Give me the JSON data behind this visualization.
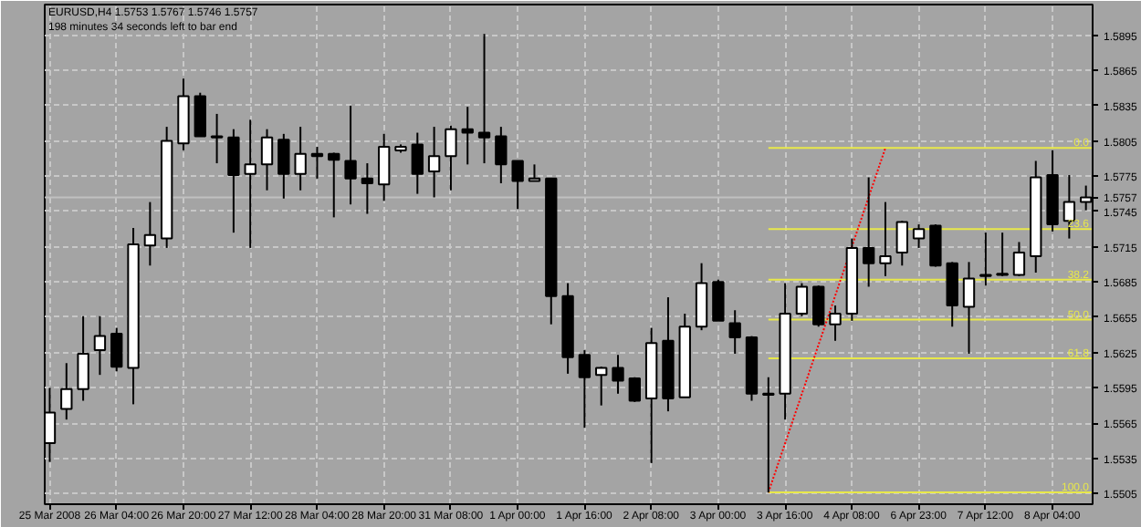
{
  "chart_data": {
    "type": "candlestick",
    "title": "EURUSD,H4  1.5753  1.5767  1.5746  1.5757",
    "subtitle": "198 minutes 34 seconds left to bar end",
    "categories": [
      "25 Mar 2008",
      null,
      null,
      null,
      "26 Mar 04:00",
      null,
      null,
      null,
      "26 Mar 20:00",
      null,
      null,
      null,
      "27 Mar 12:00",
      null,
      null,
      null,
      "28 Mar 04:00",
      null,
      null,
      null,
      "28 Mar 20:00",
      null,
      null,
      null,
      "31 Mar 08:00",
      null,
      null,
      null,
      "1 Apr 00:00",
      null,
      null,
      null,
      "1 Apr 16:00",
      null,
      null,
      null,
      "2 Apr 08:00",
      null,
      null,
      null,
      "3 Apr 00:00",
      null,
      null,
      null,
      "3 Apr 16:00",
      null,
      null,
      null,
      "4 Apr 08:00",
      null,
      null,
      null,
      "6 Apr 23:00",
      null,
      null,
      null,
      "7 Apr 12:00",
      null,
      null,
      null,
      "8 Apr 04:00",
      null,
      null
    ],
    "ohlc": [
      [
        1.5548,
        1.5595,
        1.5532,
        1.5574
      ],
      [
        1.5577,
        1.5616,
        1.5568,
        1.5594
      ],
      [
        1.5594,
        1.5656,
        1.5584,
        1.5624
      ],
      [
        1.5627,
        1.5656,
        1.5606,
        1.5639
      ],
      [
        1.5641,
        1.5646,
        1.5609,
        1.5613
      ],
      [
        1.5612,
        1.5731,
        1.5581,
        1.5717
      ],
      [
        1.5716,
        1.5753,
        1.5699,
        1.5725
      ],
      [
        1.5722,
        1.5817,
        1.5714,
        1.5805
      ],
      [
        1.5803,
        1.5858,
        1.5797,
        1.5843
      ],
      [
        1.5843,
        1.5846,
        1.5809,
        1.5809
      ],
      [
        1.5809,
        1.5828,
        1.5786,
        1.5808
      ],
      [
        1.5808,
        1.5815,
        1.5727,
        1.5776
      ],
      [
        1.5777,
        1.5823,
        1.5714,
        1.5785
      ],
      [
        1.5785,
        1.5815,
        1.5763,
        1.5808
      ],
      [
        1.5806,
        1.5811,
        1.5756,
        1.5777
      ],
      [
        1.5777,
        1.5817,
        1.5763,
        1.5794
      ],
      [
        1.5794,
        1.58,
        1.5773,
        1.5792
      ],
      [
        1.5794,
        1.5795,
        1.574,
        1.5789
      ],
      [
        1.5788,
        1.5835,
        1.5751,
        1.5773
      ],
      [
        1.5773,
        1.5786,
        1.5743,
        1.5769
      ],
      [
        1.5768,
        1.5811,
        1.5754,
        1.58
      ],
      [
        1.5797,
        1.5802,
        1.5795,
        1.58
      ],
      [
        1.5802,
        1.5812,
        1.576,
        1.5777
      ],
      [
        1.5779,
        1.5817,
        1.5757,
        1.5792
      ],
      [
        1.5792,
        1.5818,
        1.5763,
        1.5815
      ],
      [
        1.5815,
        1.5834,
        1.5785,
        1.5812
      ],
      [
        1.5812,
        1.5896,
        1.5786,
        1.5808
      ],
      [
        1.5809,
        1.5817,
        1.5769,
        1.5785
      ],
      [
        1.5788,
        1.5788,
        1.5747,
        1.5771
      ],
      [
        1.5771,
        1.5785,
        1.5771,
        1.5773
      ],
      [
        1.5773,
        1.5773,
        1.5649,
        1.5673
      ],
      [
        1.5673,
        1.5684,
        1.5607,
        1.5621
      ],
      [
        1.5623,
        1.5627,
        1.5561,
        1.5604
      ],
      [
        1.5606,
        1.5613,
        1.558,
        1.5612
      ],
      [
        1.5612,
        1.5623,
        1.559,
        1.5601
      ],
      [
        1.5603,
        1.5604,
        1.5583,
        1.5584
      ],
      [
        1.5586,
        1.5646,
        1.5531,
        1.5633
      ],
      [
        1.5635,
        1.5672,
        1.5575,
        1.5586
      ],
      [
        1.5587,
        1.5658,
        1.5587,
        1.5647
      ],
      [
        1.5647,
        1.5701,
        1.5644,
        1.5684
      ],
      [
        1.5685,
        1.5687,
        1.5652,
        1.5652
      ],
      [
        1.565,
        1.5661,
        1.5624,
        1.5638
      ],
      [
        1.5638,
        1.5639,
        1.5584,
        1.559
      ],
      [
        1.559,
        1.5604,
        1.5506,
        1.5589
      ],
      [
        1.559,
        1.5684,
        1.5568,
        1.5658
      ],
      [
        1.5658,
        1.5684,
        1.5656,
        1.5681
      ],
      [
        1.5681,
        1.5682,
        1.5647,
        1.5649
      ],
      [
        1.5649,
        1.5665,
        1.5635,
        1.5658
      ],
      [
        1.5658,
        1.5722,
        1.5652,
        1.5714
      ],
      [
        1.5714,
        1.5774,
        1.5681,
        1.5701
      ],
      [
        1.5701,
        1.5753,
        1.569,
        1.5707
      ],
      [
        1.571,
        1.5737,
        1.5699,
        1.5736
      ],
      [
        1.5722,
        1.5734,
        1.5714,
        1.573
      ],
      [
        1.5733,
        1.5734,
        1.5698,
        1.5699
      ],
      [
        1.5701,
        1.5702,
        1.5647,
        1.5665
      ],
      [
        1.5664,
        1.5702,
        1.5624,
        1.5688
      ],
      [
        1.569,
        1.5727,
        1.5682,
        1.5691
      ],
      [
        1.5691,
        1.5727,
        1.569,
        1.5692
      ],
      [
        1.5691,
        1.5719,
        1.569,
        1.571
      ],
      [
        1.5707,
        1.5788,
        1.5693,
        1.5774
      ],
      [
        1.5776,
        1.5797,
        1.5728,
        1.5734
      ],
      [
        1.5737,
        1.5776,
        1.5722,
        1.5753
      ],
      [
        1.5753,
        1.5767,
        1.5746,
        1.5757
      ]
    ],
    "colors": [
      "#ffffff",
      "#ffffff",
      "#ffffff",
      "#ffffff",
      "#000000",
      "#ffffff",
      "#ffffff",
      "#ffffff",
      "#ffffff",
      "#000000",
      "#000000",
      "#000000",
      "#ffffff",
      "#ffffff",
      "#000000",
      "#ffffff",
      "#000000",
      "#000000",
      "#000000",
      "#000000",
      "#ffffff",
      "#ffffff",
      "#000000",
      "#ffffff",
      "#ffffff",
      "#000000",
      "#000000",
      "#000000",
      "#000000",
      "#ffffff",
      "#000000",
      "#000000",
      "#000000",
      "#ffffff",
      "#000000",
      "#000000",
      "#ffffff",
      "#000000",
      "#ffffff",
      "#ffffff",
      "#000000",
      "#000000",
      "#000000",
      "#000000",
      "#ffffff",
      "#ffffff",
      "#000000",
      "#ffffff",
      "#ffffff",
      "#000000",
      "#ffffff",
      "#ffffff",
      "#ffffff",
      "#000000",
      "#000000",
      "#ffffff",
      "#ffffff",
      "#ffffff",
      "#ffffff",
      "#ffffff",
      "#000000",
      "#ffffff",
      "#ffffff"
    ],
    "series": [
      {
        "type": "line",
        "values": [
          null,
          null,
          null,
          null,
          null,
          null,
          null,
          null,
          null,
          null,
          null,
          null,
          null,
          null,
          null,
          null,
          null,
          null,
          null,
          null,
          null,
          null,
          null,
          null,
          null,
          null,
          null,
          null,
          null,
          null,
          null,
          null,
          null,
          null,
          null,
          null,
          null,
          null,
          null,
          null,
          null,
          null,
          null,
          1.5506,
          null,
          null,
          null,
          null,
          null,
          null,
          1.5799,
          null,
          null,
          null,
          null,
          null,
          null,
          null,
          null,
          null,
          null,
          null,
          null
        ],
        "color": "#ff0000",
        "line_style": "dotted"
      }
    ],
    "ylim": [
      1.5496,
      1.5921
    ],
    "yticks": [
      1.5505,
      1.5535,
      1.5565,
      1.5595,
      1.5625,
      1.5655,
      1.5685,
      1.5715,
      1.5745,
      1.5775,
      1.5805,
      1.5835,
      1.5865,
      1.5895
    ],
    "ref_lines": [
      {
        "axis": "y",
        "value": 1.5799,
        "color": "#e8e84a"
      },
      {
        "axis": "y",
        "value": 1.5757,
        "label": "1.5757",
        "color": "#c0c0c0"
      },
      {
        "axis": "y",
        "value": 1.573,
        "color": "#e8e84a"
      },
      {
        "axis": "y",
        "value": 1.5687,
        "color": "#e8e84a"
      },
      {
        "axis": "y",
        "value": 1.5653,
        "color": "#e8e84a"
      },
      {
        "axis": "y",
        "value": 1.562,
        "color": "#e8e84a"
      },
      {
        "axis": "y",
        "value": 1.5506,
        "color": "#e8e84a"
      }
    ],
    "annotations": [
      "0.0",
      "23.6",
      "38.2",
      "50.0",
      "61.8",
      "100.0"
    ],
    "grid": true
  }
}
